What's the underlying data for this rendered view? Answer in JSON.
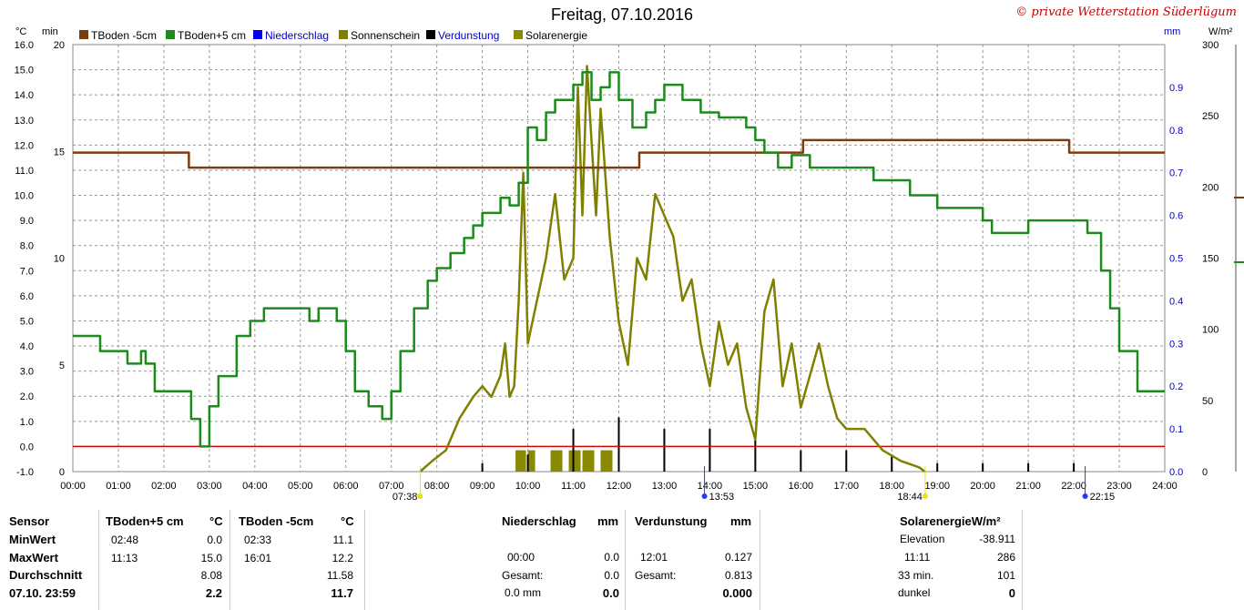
{
  "page": {
    "title": "Freitag, 07.10.2016",
    "credit": "© private Wetterstation Süderlügum"
  },
  "colors": {
    "tboden5": "#7b3d10",
    "tboden_p5": "#1e8a1e",
    "niederschlag": "#0000ee",
    "sonnenschein": "#808000",
    "verdunstung": "#000000",
    "solar": "#8a8a00",
    "zeroline": "#dd0000"
  },
  "chart_data": {
    "type": "line",
    "title": "Freitag, 07.10.2016",
    "x_ticks": [
      "00:00",
      "01:00",
      "02:00",
      "03:00",
      "04:00",
      "05:00",
      "06:00",
      "07:00",
      "08:00",
      "09:00",
      "10:00",
      "11:00",
      "12:00",
      "13:00",
      "14:00",
      "15:00",
      "16:00",
      "17:00",
      "18:00",
      "19:00",
      "20:00",
      "21:00",
      "22:00",
      "23:00",
      "24:00"
    ],
    "axes": {
      "temp": {
        "unit": "°C",
        "range": [
          -1.0,
          16.0
        ],
        "ticks": [
          "-1.0",
          "0.0",
          "1.0",
          "2.0",
          "3.0",
          "4.0",
          "5.0",
          "6.0",
          "7.0",
          "8.0",
          "9.0",
          "10.0",
          "11.0",
          "12.0",
          "13.0",
          "14.0",
          "15.0",
          "16.0"
        ]
      },
      "min": {
        "unit": "min",
        "range": [
          0,
          20
        ],
        "ticks": [
          "0",
          "5",
          "10",
          "15",
          "20"
        ]
      },
      "mm": {
        "unit": "mm",
        "range": [
          0.0,
          1.0
        ],
        "ticks": [
          "0.0",
          "0.1",
          "0.2",
          "0.3",
          "0.4",
          "0.5",
          "0.6",
          "0.7",
          "0.8",
          "0.9"
        ]
      },
      "wm2": {
        "unit": "W/m²",
        "range": [
          0,
          300
        ],
        "ticks": [
          "0",
          "50",
          "100",
          "150",
          "200",
          "250",
          "300"
        ]
      }
    },
    "legend": [
      "TBoden -5cm",
      "TBoden+5 cm",
      "Niederschlag",
      "Sonnenschein",
      "Verdunstung",
      "Solarenergie"
    ],
    "series": [
      {
        "name": "TBoden -5cm",
        "axis": "temp",
        "hours": [
          0,
          2.5,
          2.55,
          12.4,
          12.45,
          16.0,
          16.05,
          21.8,
          21.9,
          24
        ],
        "values": [
          11.7,
          11.7,
          11.1,
          11.1,
          11.7,
          11.7,
          12.2,
          12.2,
          11.7,
          11.7
        ]
      },
      {
        "name": "TBoden+5 cm",
        "axis": "temp",
        "hours": [
          0,
          0.3,
          0.6,
          0.9,
          1.2,
          1.5,
          1.6,
          1.7,
          1.8,
          2.2,
          2.6,
          2.8,
          3.0,
          3.2,
          3.6,
          3.9,
          4.2,
          4.8,
          5.2,
          5.4,
          5.8,
          6.0,
          6.2,
          6.5,
          6.8,
          7.0,
          7.2,
          7.5,
          7.8,
          8.0,
          8.3,
          8.6,
          8.8,
          9.0,
          9.4,
          9.6,
          9.8,
          10.0,
          10.2,
          10.4,
          10.6,
          10.8,
          11.0,
          11.2,
          11.4,
          11.6,
          11.8,
          12.0,
          12.3,
          12.6,
          12.8,
          13.0,
          13.4,
          13.8,
          14.2,
          14.8,
          15.0,
          15.2,
          15.5,
          15.8,
          16.2,
          16.6,
          17.0,
          17.6,
          18.0,
          18.4,
          19.0,
          20.0,
          20.2,
          21.0,
          21.6,
          22.0,
          22.3,
          22.6,
          22.8,
          23.0,
          23.4,
          24
        ],
        "values": [
          4.4,
          4.4,
          3.8,
          3.8,
          3.3,
          3.8,
          3.3,
          3.3,
          2.2,
          2.2,
          1.1,
          0.0,
          1.6,
          2.8,
          4.4,
          5.0,
          5.5,
          5.5,
          5.0,
          5.5,
          5.0,
          3.8,
          2.2,
          1.6,
          1.1,
          2.2,
          3.8,
          5.5,
          6.6,
          7.1,
          7.7,
          8.3,
          8.8,
          9.3,
          9.9,
          9.6,
          10.5,
          12.7,
          12.2,
          13.3,
          13.8,
          13.8,
          14.4,
          14.9,
          13.8,
          14.3,
          14.9,
          13.8,
          12.7,
          13.3,
          13.8,
          14.4,
          13.8,
          13.3,
          13.1,
          12.7,
          12.2,
          11.7,
          11.1,
          11.6,
          11.1,
          11.1,
          11.1,
          10.6,
          10.6,
          10.0,
          9.5,
          9.0,
          8.5,
          9.0,
          9.0,
          9.0,
          8.5,
          7.0,
          5.5,
          3.8,
          2.2,
          2.2
        ]
      },
      {
        "name": "Sonnenschein",
        "axis": "min",
        "hours": [
          7.63,
          7.9,
          8.2,
          8.5,
          8.8,
          9.0,
          9.2,
          9.4,
          9.5,
          9.6,
          9.7,
          9.8,
          9.9,
          10.0,
          10.2,
          10.4,
          10.6,
          10.8,
          11.0,
          11.1,
          11.2,
          11.3,
          11.5,
          11.6,
          11.7,
          11.8,
          12.0,
          12.2,
          12.4,
          12.6,
          12.8,
          13.0,
          13.2,
          13.4,
          13.6,
          13.8,
          14.0,
          14.2,
          14.4,
          14.6,
          14.8,
          15.0,
          15.2,
          15.4,
          15.6,
          15.8,
          16.0,
          16.2,
          16.4,
          16.6,
          16.8,
          17.0,
          17.4,
          17.8,
          18.2,
          18.6,
          18.73
        ],
        "values": [
          0,
          0.5,
          1.0,
          2.5,
          3.5,
          4.0,
          3.5,
          4.5,
          6.0,
          3.5,
          4.0,
          8.0,
          14.0,
          6.0,
          8.0,
          10.0,
          13.0,
          9.0,
          10.0,
          18.0,
          12.0,
          19.0,
          12.0,
          17.0,
          14.0,
          11.0,
          7.0,
          5.0,
          10.0,
          9.0,
          13.0,
          12.0,
          11.0,
          8.0,
          9.0,
          6.0,
          4.0,
          7.0,
          5.0,
          6.0,
          3.0,
          1.5,
          7.5,
          9.0,
          4.0,
          6.0,
          3.0,
          4.5,
          6.0,
          4.0,
          2.5,
          2.0,
          2.0,
          1.0,
          0.5,
          0.2,
          0
        ]
      },
      {
        "name": "Verdunstung",
        "axis": "mm",
        "hours": [
          9.0,
          10.0,
          11.0,
          12.0,
          13.0,
          14.0,
          15.0,
          16.0,
          17.0,
          18.0,
          19.0,
          20.0,
          21.0,
          22.0
        ],
        "values": [
          0.02,
          0.04,
          0.1,
          0.127,
          0.1,
          0.1,
          0.08,
          0.05,
          0.05,
          0.04,
          0.02,
          0.02,
          0.02,
          0.02
        ]
      },
      {
        "name": "Solarenergie",
        "axis": "min",
        "hours": [
          9.73,
          9.8,
          10.0,
          10.5,
          10.6,
          10.9,
          11.0,
          11.2,
          11.3,
          11.6,
          11.7
        ],
        "values": [
          1,
          1,
          1,
          1,
          1,
          1,
          1,
          1,
          1,
          1,
          1
        ]
      }
    ],
    "sun_events": [
      "07:38",
      "13:53",
      "18:44",
      "22:15"
    ]
  },
  "stats": {
    "sensor": {
      "header": "Sensor",
      "rows": [
        "MinWert",
        "MaxWert",
        "Durchschnitt",
        "07.10. 23:59"
      ]
    },
    "tboden_p5": {
      "header": "TBoden+5 cm",
      "unit": "°C",
      "times": [
        "02:48",
        "11:13",
        "",
        ""
      ],
      "values": [
        "0.0",
        "15.0",
        "8.08",
        "2.2"
      ]
    },
    "tboden_m5": {
      "header": "TBoden -5cm",
      "unit": "°C",
      "times": [
        "02:33",
        "16:01",
        "",
        ""
      ],
      "values": [
        "11.1",
        "12.2",
        "11.58",
        "11.7"
      ]
    },
    "niederschlag": {
      "header": "Niederschlag",
      "unit": "mm",
      "labels": [
        "",
        "00:00",
        "Gesamt:",
        "0.0 mm"
      ],
      "values": [
        "",
        "0.0",
        "0.0",
        "0.0"
      ]
    },
    "verdunstung": {
      "header": "Verdunstung",
      "unit": "mm",
      "labels": [
        "",
        "12:01",
        "Gesamt:",
        ""
      ],
      "values": [
        "",
        "0.127",
        "0.813",
        "0.000"
      ]
    },
    "solar": {
      "header": "SolarenergieW/m²",
      "labels": [
        "Elevation",
        "11:11",
        "33 min.",
        "dunkel"
      ],
      "values": [
        "-38.911",
        "286",
        "101",
        "0"
      ]
    }
  }
}
